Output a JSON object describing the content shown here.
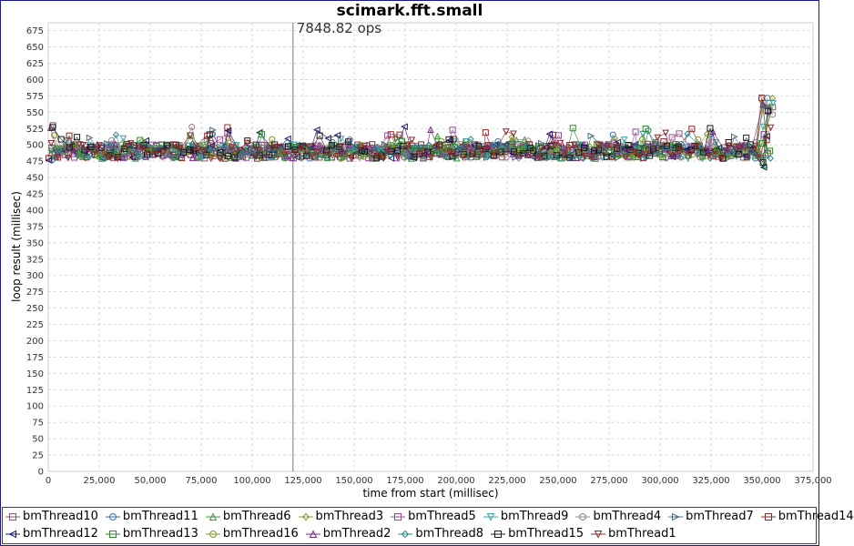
{
  "chart_data": {
    "type": "scatter",
    "title": "scimark.fft.small",
    "xlabel": "time from start (millisec)",
    "ylabel": "loop result (millisec)",
    "xlim": [
      0,
      375000
    ],
    "ylim": [
      0,
      687
    ],
    "xticks": [
      0,
      25000,
      50000,
      75000,
      100000,
      125000,
      150000,
      175000,
      200000,
      225000,
      250000,
      275000,
      300000,
      325000,
      350000,
      375000
    ],
    "xtick_labels": [
      "0",
      "25,000",
      "50,000",
      "75,000",
      "100,000",
      "125,000",
      "150,000",
      "175,000",
      "200,000",
      "225,000",
      "250,000",
      "275,000",
      "300,000",
      "325,000",
      "350,000",
      "375,000"
    ],
    "yticks": [
      0,
      25,
      50,
      75,
      100,
      125,
      150,
      175,
      200,
      225,
      250,
      275,
      300,
      325,
      350,
      375,
      400,
      425,
      450,
      475,
      500,
      525,
      550,
      575,
      600,
      625,
      650,
      675
    ],
    "grid": true,
    "annotation": {
      "text": "7848.82 ops",
      "x": 120000
    },
    "x_range": [
      0,
      356000
    ],
    "baseline": 490,
    "series": [
      {
        "name": "bmThread10",
        "marker": "square",
        "color": "#8b5a5a"
      },
      {
        "name": "bmThread11",
        "marker": "circle",
        "color": "#3a6fb0"
      },
      {
        "name": "bmThread6",
        "marker": "triangle-up",
        "color": "#3a9a3a"
      },
      {
        "name": "bmThread3",
        "marker": "diamond",
        "color": "#8a9a3a"
      },
      {
        "name": "bmThread5",
        "marker": "square",
        "color": "#9a4a9a"
      },
      {
        "name": "bmThread9",
        "marker": "triangle-down",
        "color": "#3aa0a0"
      },
      {
        "name": "bmThread4",
        "marker": "circle",
        "color": "#9a7a8a"
      },
      {
        "name": "bmThread7",
        "marker": "triangle-right",
        "color": "#4a6a7a"
      },
      {
        "name": "bmThread14",
        "marker": "square",
        "color": "#8b2a2a"
      },
      {
        "name": "bmThread12",
        "marker": "triangle-left",
        "color": "#1a1a6a"
      },
      {
        "name": "bmThread13",
        "marker": "square",
        "color": "#2a8a2a"
      },
      {
        "name": "bmThread16",
        "marker": "circle",
        "color": "#7a9a2a"
      },
      {
        "name": "bmThread2",
        "marker": "triangle-up",
        "color": "#7a2a8a"
      },
      {
        "name": "bmThread8",
        "marker": "diamond",
        "color": "#2a8a8a"
      },
      {
        "name": "bmThread15",
        "marker": "square",
        "color": "#1a1a1a"
      },
      {
        "name": "bmThread1",
        "marker": "triangle-down",
        "color": "#8b2a2a"
      }
    ]
  }
}
